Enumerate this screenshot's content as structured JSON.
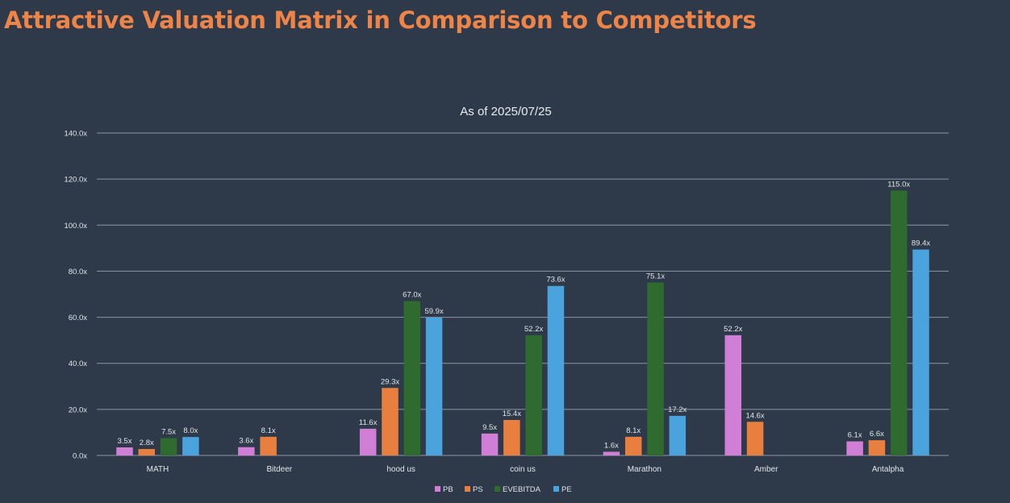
{
  "page": {
    "title": "Attractive Valuation Matrix in Comparison to Competitors"
  },
  "chart_data": {
    "type": "bar",
    "title": "As of 2025/07/25",
    "xlabel": "",
    "ylabel": "",
    "ylim": [
      0,
      140
    ],
    "yticks": [
      "0.0x",
      "20.0x",
      "40.0x",
      "60.0x",
      "80.0x",
      "100.0x",
      "120.0x",
      "140.0x"
    ],
    "ytick_values": [
      0,
      20,
      40,
      60,
      80,
      100,
      120,
      140
    ],
    "grid": true,
    "legend_position": "bottom",
    "categories": [
      "MATH",
      "Bitdeer",
      "hood us",
      "coin us",
      "Marathon",
      "Amber",
      "Antalpha"
    ],
    "series": [
      {
        "name": "PB",
        "color": "#d17fd6",
        "values": [
          3.5,
          3.6,
          11.6,
          9.5,
          1.6,
          52.2,
          6.1
        ],
        "labels": [
          "3.5x",
          "3.6x",
          "11.6x",
          "9.5x",
          "1.6x",
          "52.2x",
          "6.1x"
        ]
      },
      {
        "name": "PS",
        "color": "#e97f3f",
        "values": [
          2.8,
          8.1,
          29.3,
          15.4,
          8.1,
          14.6,
          6.6
        ],
        "labels": [
          "2.8x",
          "8.1x",
          "29.3x",
          "15.4x",
          "8.1x",
          "14.6x",
          "6.6x"
        ]
      },
      {
        "name": "EVEBITDA",
        "color": "#2f6a2f",
        "values": [
          7.5,
          null,
          67.0,
          52.2,
          75.1,
          null,
          115.0
        ],
        "labels": [
          "7.5x",
          "",
          "67.0x",
          "52.2x",
          "75.1x",
          "",
          "115.0x"
        ]
      },
      {
        "name": "PE",
        "color": "#4aa3dc",
        "values": [
          8.0,
          null,
          59.9,
          73.6,
          17.2,
          null,
          89.4
        ],
        "labels": [
          "8.0x",
          "",
          "59.9x",
          "73.6x",
          "17.2x",
          "",
          "89.4x"
        ]
      }
    ]
  }
}
